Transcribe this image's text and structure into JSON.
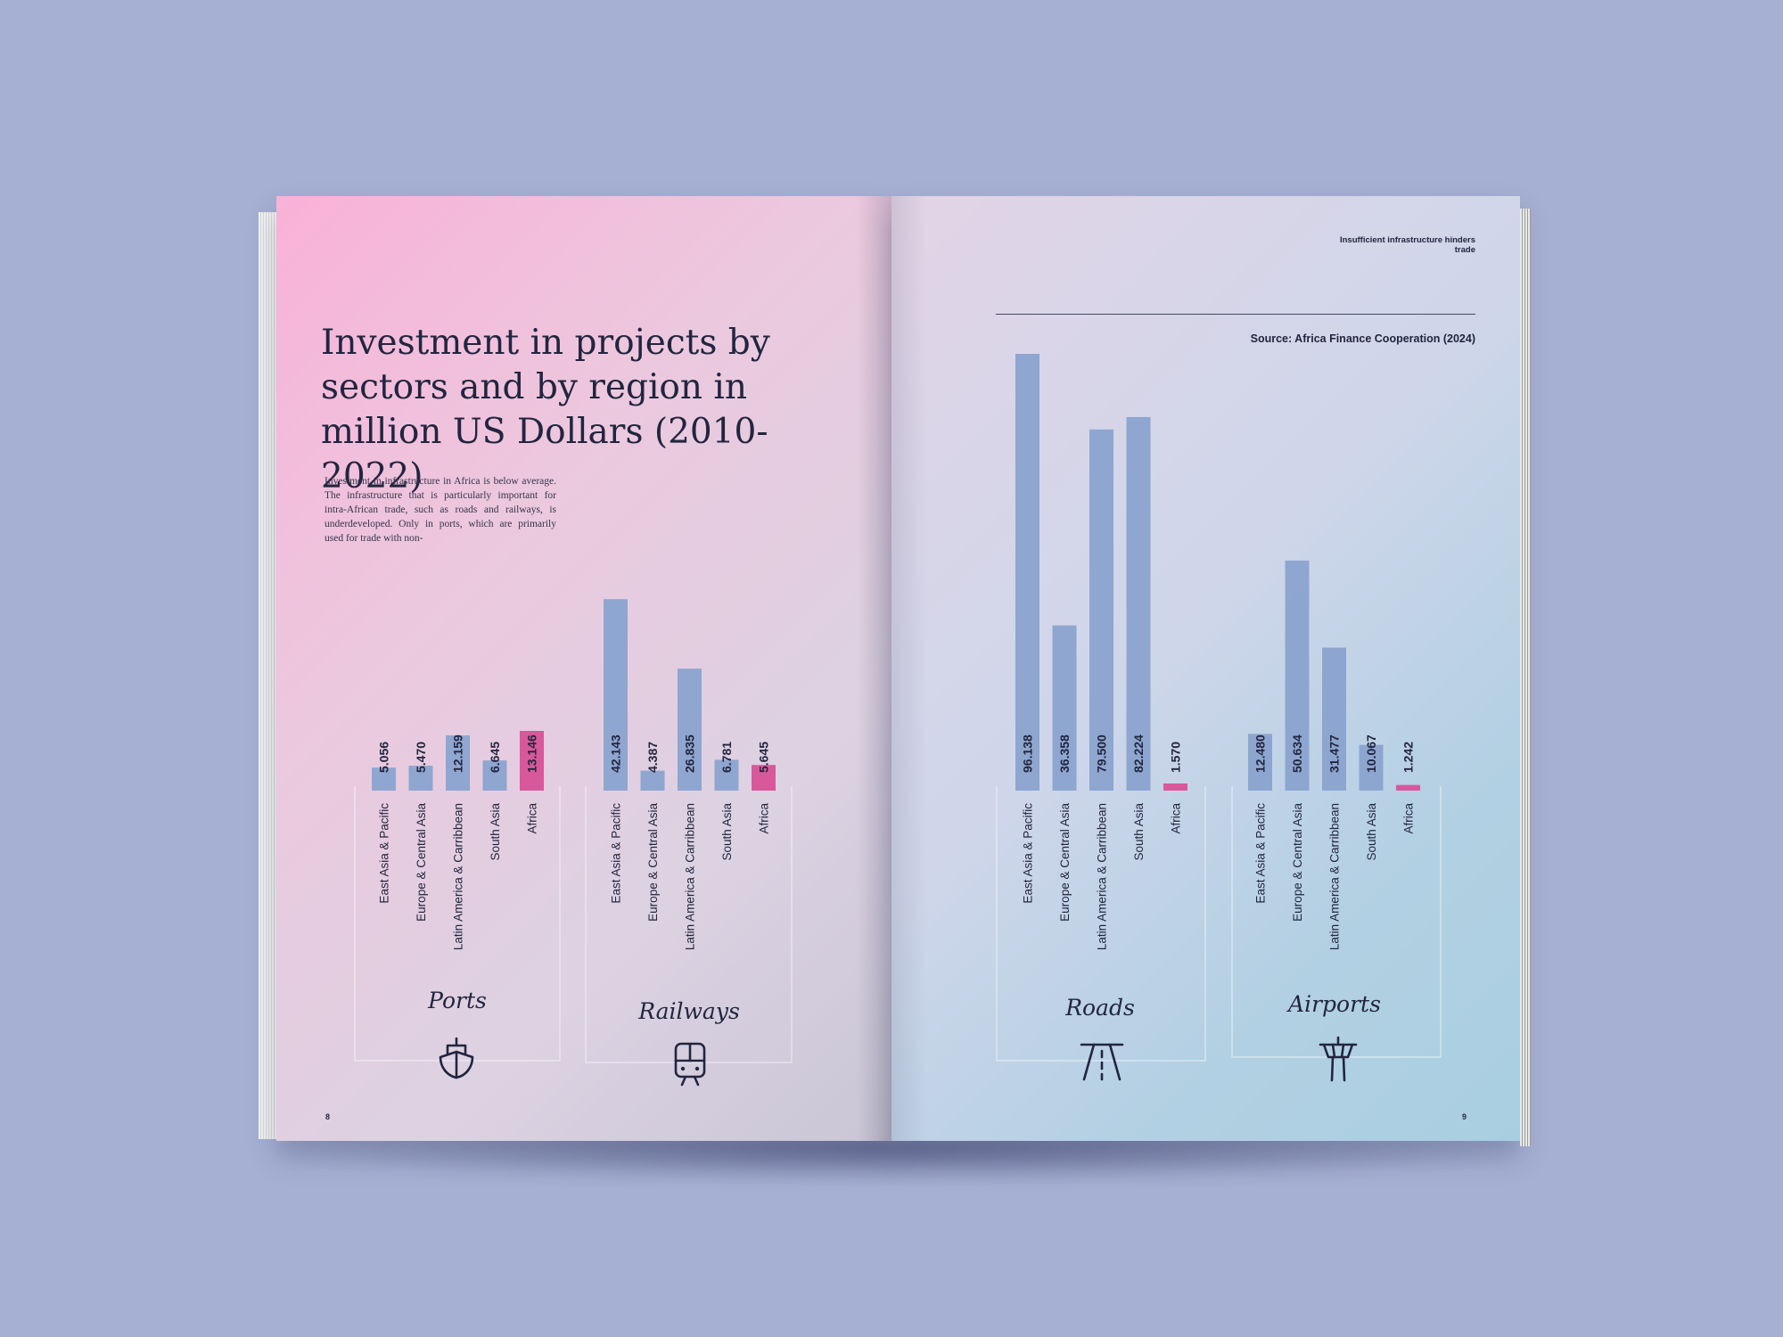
{
  "title": "Investment in projects by sectors and by region in million US Dollars (2010-2022)",
  "intro_text": "Investment in infrastructure in Africa is below average. The infrastructure that is particularly important for intra-African trade, such as roads and railways, is underdeveloped. Only in ports, which are primarily used for trade with non-",
  "running_header": "Insufficient infrastructure hinders trade",
  "source": "Source: Africa Finance Cooperation (2024)",
  "page_numbers": {
    "left": "8",
    "right": "9"
  },
  "colors": {
    "bar": "#8aa3cf",
    "highlight": "#d8589c",
    "text": "#22253f"
  },
  "icons": [
    "ship-icon",
    "train-icon",
    "road-icon",
    "airport-tower-icon"
  ],
  "chart_data": [
    {
      "type": "bar",
      "sector": "Ports",
      "categories": [
        "East Asia & Pacific",
        "Europe & Central Asia",
        "Latin America & Carribbean",
        "South Asia",
        "Africa"
      ],
      "values": [
        5056,
        5470,
        12159,
        6645,
        13146
      ],
      "labels": [
        "5.056",
        "5.470",
        "12.159",
        "6.645",
        "13.146"
      ],
      "highlight": "Africa",
      "value_unit": "million US Dollars"
    },
    {
      "type": "bar",
      "sector": "Railways",
      "categories": [
        "East Asia & Pacific",
        "Europe & Central Asia",
        "Latin America & Carribbean",
        "South Asia",
        "Africa"
      ],
      "values": [
        42143,
        4387,
        26835,
        6781,
        5645
      ],
      "labels": [
        "42.143",
        "4.387",
        "26.835",
        "6.781",
        "5.645"
      ],
      "highlight": "Africa",
      "value_unit": "million US Dollars"
    },
    {
      "type": "bar",
      "sector": "Roads",
      "categories": [
        "East Asia & Pacific",
        "Europe & Central Asia",
        "Latin America & Carribbean",
        "South Asia",
        "Africa"
      ],
      "values": [
        96138,
        36358,
        79500,
        82224,
        1570
      ],
      "labels": [
        "96.138",
        "36.358",
        "79.500",
        "82.224",
        "1.570"
      ],
      "highlight": "Africa",
      "value_unit": "million US Dollars"
    },
    {
      "type": "bar",
      "sector": "Airports",
      "categories": [
        "East Asia & Pacific",
        "Europe & Central Asia",
        "Latin America & Carribbean",
        "South Asia",
        "Africa"
      ],
      "values": [
        12480,
        50634,
        31477,
        10067,
        1242
      ],
      "labels": [
        "12.480",
        "50.634",
        "31.477",
        "10.067",
        "1.242"
      ],
      "highlight": "Africa",
      "value_unit": "million US Dollars"
    }
  ]
}
